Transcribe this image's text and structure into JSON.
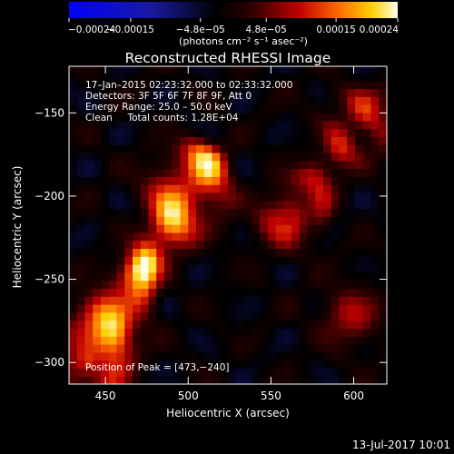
{
  "chart_data": {
    "type": "heatmap",
    "title": "Reconstructed RHESSI Image",
    "xlabel": "Heliocentric X (arcsec)",
    "ylabel": "Heliocentric Y (arcsec)",
    "xlim": [
      428,
      620
    ],
    "ylim": [
      -313,
      -122
    ],
    "x_ticks": [
      450,
      500,
      550,
      600
    ],
    "y_ticks": [
      -150,
      -200,
      -250,
      -300
    ],
    "x_tick_labels": [
      "450",
      "500",
      "550",
      "600"
    ],
    "y_tick_labels": [
      "−150",
      "−200",
      "−250",
      "−300"
    ],
    "colorbar": {
      "range": [
        -0.00024,
        0.00024
      ],
      "tick_values": [
        -0.00024,
        -0.00015,
        -4.8e-05,
        4.8e-05,
        0.00015,
        0.00024
      ],
      "tick_labels": [
        "−0.00024",
        "−0.00015",
        "−4.8e−05",
        "4.8e−05",
        "0.00015",
        "0.00024"
      ],
      "units_label": "(photons cm⁻² s⁻¹ asec⁻²)",
      "colormap": "blue-black-red-yellow-white"
    },
    "annotations": [
      "17–Jan–2015 02:23:32.000 to 02:33:32.000",
      "Detectors: 3F 5F 6F 7F 8F 9F, Att 0",
      "Energy Range: 25.0 – 50.0 keV",
      "Clean     Total counts: 1.28E+04"
    ],
    "peak_label": "Position of Peak = [473,−240]",
    "peak": [
      473,
      -240
    ],
    "sources": [
      {
        "kind": "ribbon",
        "from": [
          440,
          -300
        ],
        "to": [
          510,
          -180
        ],
        "peak_value": 0.00024
      },
      {
        "kind": "ribbon",
        "from": [
          560,
          -215
        ],
        "to": [
          612,
          -145
        ],
        "peak_value": 0.00013
      },
      {
        "kind": "blob",
        "center": [
          598,
          -272
        ],
        "peak_value": 0.0001
      }
    ]
  },
  "footer": {
    "timestamp": "13-Jul-2017 10:01"
  }
}
